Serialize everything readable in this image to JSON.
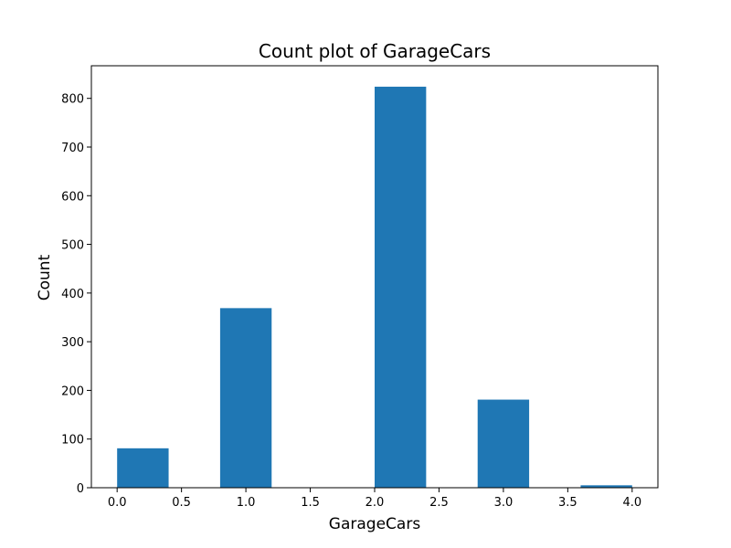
{
  "chart_data": {
    "type": "bar",
    "title": "Count plot of GarageCars",
    "xlabel": "GarageCars",
    "ylabel": "Count",
    "xlim": [
      -0.2,
      4.2
    ],
    "ylim": [
      0,
      867
    ],
    "x_ticks": [
      "0.0",
      "0.5",
      "1.0",
      "1.5",
      "2.0",
      "2.5",
      "3.0",
      "3.5",
      "4.0"
    ],
    "y_ticks": [
      "0",
      "100",
      "200",
      "300",
      "400",
      "500",
      "600",
      "700",
      "800"
    ],
    "bins": [
      {
        "x0": 0.0,
        "x1": 0.4,
        "value": 81
      },
      {
        "x0": 0.8,
        "x1": 1.2,
        "value": 369
      },
      {
        "x0": 2.0,
        "x1": 2.4,
        "value": 824
      },
      {
        "x0": 2.8,
        "x1": 3.2,
        "value": 181
      },
      {
        "x0": 3.6,
        "x1": 4.0,
        "value": 5
      }
    ],
    "bar_color": "#1f77b4",
    "grid": false,
    "legend": "none"
  }
}
